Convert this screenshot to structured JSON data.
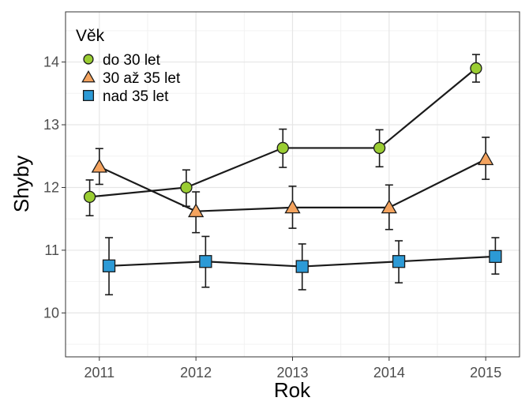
{
  "chart_data": {
    "type": "line",
    "title": "",
    "xlabel": "Rok",
    "ylabel": "Shyby",
    "x": [
      2011,
      2012,
      2013,
      2014,
      2015
    ],
    "xlim": [
      2010.65,
      2015.35
    ],
    "ylim": [
      9.3,
      14.8
    ],
    "yticks": [
      10,
      11,
      12,
      13,
      14
    ],
    "grid": true,
    "legend": {
      "title": "Věk",
      "position": "top-left"
    },
    "series": [
      {
        "name": "do 30 let",
        "marker": "circle",
        "color": "#9acd32",
        "values": [
          11.85,
          12.0,
          12.63,
          12.63,
          13.9
        ],
        "err_low": [
          11.55,
          11.7,
          12.32,
          12.33,
          13.68
        ],
        "err_high": [
          12.12,
          12.28,
          12.93,
          12.92,
          14.12
        ]
      },
      {
        "name": "30 až 35 let",
        "marker": "triangle",
        "color": "#f4a35e",
        "values": [
          12.33,
          11.62,
          11.68,
          11.68,
          12.45
        ],
        "err_low": [
          12.05,
          11.28,
          11.35,
          11.33,
          12.13
        ],
        "err_high": [
          12.62,
          11.93,
          12.02,
          12.04,
          12.8
        ]
      },
      {
        "name": "nad 35 let",
        "marker": "square",
        "color": "#2c9ad6",
        "values": [
          10.75,
          10.82,
          10.74,
          10.82,
          10.9
        ],
        "err_low": [
          10.29,
          10.41,
          10.37,
          10.48,
          10.62
        ],
        "err_high": [
          11.2,
          11.22,
          11.1,
          11.15,
          11.2
        ]
      }
    ]
  }
}
